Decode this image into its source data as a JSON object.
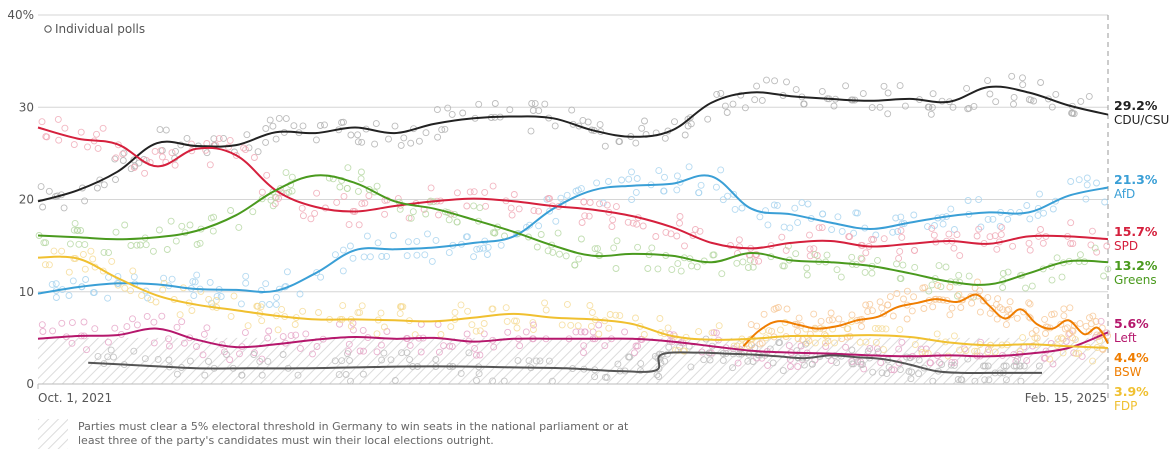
{
  "chart_data": {
    "type": "line",
    "title": "",
    "xlabel": "",
    "ylabel": "",
    "x_unit": "months since Oct. 1, 2021",
    "xlim": [
      0,
      40.5
    ],
    "ylim": [
      0,
      40
    ],
    "y_ticks": [
      {
        "value": 0,
        "label": "0"
      },
      {
        "value": 10,
        "label": "10"
      },
      {
        "value": 20,
        "label": "20"
      },
      {
        "value": 30,
        "label": "30"
      },
      {
        "value": 40,
        "label": "40%"
      }
    ],
    "x_tick_labels": [
      {
        "value": 0,
        "label": "Oct. 1, 2021"
      },
      {
        "value": 40.5,
        "label": "Feb. 15, 2025"
      }
    ],
    "legend": {
      "label": "Individual polls",
      "placement": "top-left"
    },
    "threshold": {
      "value": 5,
      "note": "Parties must clear a 5% electoral threshold in Germany to win seats in the national parliament or at least three of the party's candidates must win their local elections outright."
    },
    "grid": true,
    "series": [
      {
        "name": "CDU/CSU",
        "end_label": "29.2%",
        "color": "#222222",
        "dot_color": "#b0b0b0",
        "x": [
          0,
          1.5,
          3,
          4.5,
          6,
          7.5,
          9,
          10.5,
          12,
          13.5,
          15,
          16.5,
          18,
          19.5,
          21,
          22.5,
          24,
          25.5,
          27,
          28.5,
          30,
          31.5,
          33,
          34.5,
          36,
          37.5,
          39,
          40.5
        ],
        "y": [
          19.8,
          21,
          23,
          26.1,
          25.8,
          25.9,
          27.3,
          27.2,
          27.8,
          27.2,
          28.2,
          28.8,
          29,
          28.8,
          27.5,
          26.8,
          27.5,
          30.5,
          31.6,
          31.2,
          30.9,
          30.7,
          30.9,
          30.6,
          32.2,
          31.6,
          30.2,
          29.2
        ]
      },
      {
        "name": "AfD",
        "end_label": "21.3%",
        "color": "#3a9fd6",
        "dot_color": "#a8d3ee",
        "x": [
          0,
          1.5,
          3,
          4.5,
          6,
          7.5,
          9,
          10.5,
          12,
          13.5,
          15,
          16.5,
          18,
          19.5,
          21,
          22.5,
          24,
          25.5,
          27,
          28.5,
          30,
          31.5,
          33,
          34.5,
          36,
          37.5,
          39,
          40.5
        ],
        "y": [
          9.8,
          10.5,
          10.9,
          10.8,
          10.3,
          10.2,
          10.1,
          12,
          14.5,
          14.6,
          14.8,
          15.3,
          16,
          19,
          21,
          21.5,
          21.7,
          22.5,
          19,
          18.4,
          17.5,
          16.8,
          17.5,
          18.2,
          18.6,
          18.6,
          20.4,
          21.3
        ]
      },
      {
        "name": "SPD",
        "end_label": "15.7%",
        "color": "#d5203d",
        "dot_color": "#f0a9b6",
        "x": [
          0,
          1.5,
          3,
          4.5,
          6,
          7.5,
          9,
          10.5,
          12,
          13.5,
          15,
          16.5,
          18,
          19.5,
          21,
          22.5,
          24,
          25.5,
          27,
          28.5,
          30,
          31.5,
          33,
          34.5,
          36,
          37.5,
          39,
          40.5
        ],
        "y": [
          27.8,
          26.6,
          26,
          23.6,
          25.5,
          24.8,
          21,
          19.2,
          18.7,
          19.3,
          19.8,
          20.1,
          19.8,
          19.3,
          18.9,
          18.2,
          17,
          15.3,
          14.7,
          15.3,
          15.5,
          14.9,
          15.2,
          15.5,
          15.2,
          16,
          16,
          15.7
        ]
      },
      {
        "name": "Greens",
        "end_label": "13.2%",
        "color": "#4a9a1e",
        "dot_color": "#b7d8a4",
        "x": [
          0,
          1.5,
          3,
          4.5,
          6,
          7.5,
          9,
          10.5,
          12,
          13.5,
          15,
          16.5,
          18,
          19.5,
          21,
          22.5,
          24,
          25.5,
          27,
          28.5,
          30,
          31.5,
          33,
          34.5,
          36,
          37.5,
          39,
          40.5
        ],
        "y": [
          16.1,
          15.9,
          15.7,
          15.9,
          16.6,
          18.3,
          21,
          22.6,
          21.8,
          19.8,
          19,
          17.8,
          16.5,
          15,
          13.9,
          14.1,
          13.9,
          13.2,
          14.2,
          13.4,
          13.2,
          12.8,
          12,
          11.1,
          10.8,
          12,
          13.3,
          13.2
        ]
      },
      {
        "name": "Left",
        "end_label": "5.6%",
        "color": "#b5176c",
        "dot_color": "#e6a6c8",
        "x": [
          0,
          1.5,
          3,
          4.5,
          6,
          7.5,
          9,
          10.5,
          12,
          13.5,
          15,
          16.5,
          18,
          19.5,
          21,
          22.5,
          24,
          25.5,
          27,
          28.5,
          30,
          31.5,
          33,
          34.5,
          36,
          37.5,
          39,
          40.5
        ],
        "y": [
          4.9,
          5.2,
          5.3,
          6,
          4.8,
          4,
          4.3,
          4.8,
          5.1,
          4.9,
          5,
          4.6,
          4.9,
          4.9,
          4.9,
          4.9,
          4.6,
          4.1,
          3.6,
          3.4,
          3.3,
          3.1,
          3,
          3.1,
          3,
          3.3,
          3.9,
          5.6
        ]
      },
      {
        "name": "BSW",
        "end_label": "4.4%",
        "color": "#ef7d00",
        "dot_color": "#f7c99a",
        "x": [
          26.7,
          27.3,
          28,
          28.8,
          29.5,
          30.3,
          31,
          31.8,
          32.5,
          33.3,
          34,
          34.8,
          35.5,
          36,
          36.6,
          37.2,
          37.8,
          38.4,
          39,
          39.6,
          40.1,
          40.5
        ],
        "y": [
          4.1,
          5.8,
          6.8,
          6.4,
          6.0,
          6.3,
          6.9,
          7.3,
          8.3,
          8.8,
          9.2,
          8.9,
          9.7,
          8.5,
          7.1,
          8.1,
          6.5,
          6.0,
          6.9,
          5.4,
          6.1,
          4.4
        ]
      },
      {
        "name": "FDP",
        "end_label": "3.9%",
        "color": "#f0c030",
        "dot_color": "#f6dc98",
        "x": [
          0,
          1.5,
          3,
          4.5,
          6,
          7.5,
          9,
          10.5,
          12,
          13.5,
          15,
          16.5,
          18,
          19.5,
          21,
          22.5,
          24,
          25.5,
          27,
          28.5,
          30,
          31.5,
          33,
          34.5,
          36,
          37.5,
          39,
          40.5
        ],
        "y": [
          13.7,
          13.6,
          11.5,
          9.6,
          8.6,
          8,
          7.4,
          7,
          7,
          6.9,
          6.8,
          7.2,
          7.6,
          7.2,
          7,
          6.5,
          5.2,
          4.8,
          4.9,
          5.2,
          5.2,
          5.3,
          5.1,
          4.5,
          4.2,
          4.3,
          4.1,
          3.9
        ]
      },
      {
        "name": "Others (unlabeled)",
        "end_label": "",
        "color": "#555555",
        "dot_color": "#bdbdbd",
        "x": [
          1.9,
          4,
          6,
          8,
          10,
          12,
          14,
          16,
          18,
          20,
          22,
          23.4,
          23.6,
          25,
          26,
          27,
          28,
          29,
          30,
          31,
          32,
          33,
          34,
          35,
          36,
          37,
          38
        ],
        "y": [
          2.3,
          2,
          1.7,
          1.7,
          1.7,
          1.8,
          1.9,
          1.9,
          1.8,
          1.7,
          1.4,
          1.5,
          3.2,
          3.4,
          3.3,
          3.2,
          3.0,
          2.8,
          3.1,
          2.9,
          2.7,
          2.1,
          1.4,
          1.2,
          1.2,
          1.2,
          1.2
        ]
      }
    ]
  },
  "footnote": "Parties must clear a 5% electoral threshold in Germany to win seats in the national parliament or at least three of the party's candidates must win their local elections outright."
}
